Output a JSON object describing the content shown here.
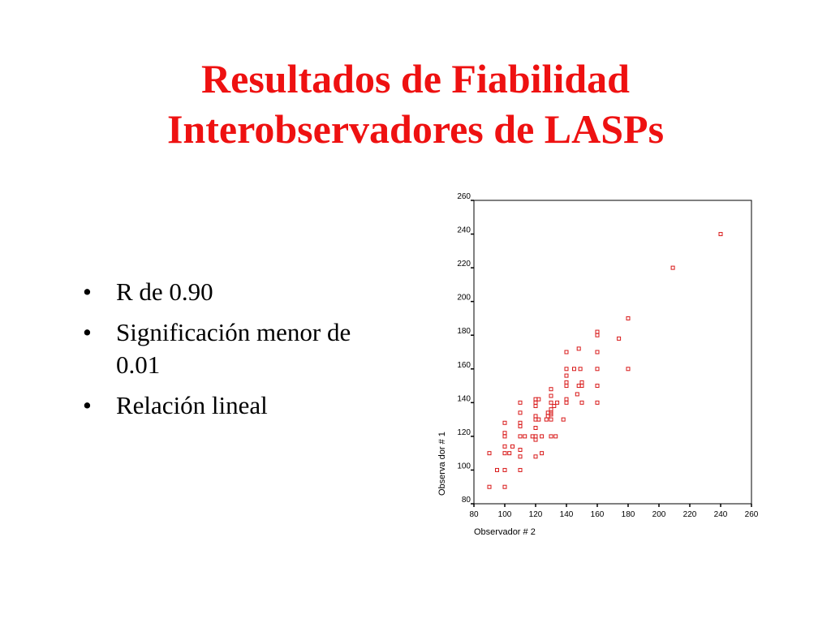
{
  "title": {
    "line1": "Resultados de Fiabilidad",
    "line2": "Interobservadores de LASPs"
  },
  "bullets": [
    "R de 0.90",
    "Significación menor de 0.01",
    "Relación lineal"
  ],
  "colors": {
    "title": "#ee1111",
    "marker": "#d81818",
    "text": "#000000"
  },
  "chart_data": {
    "type": "scatter",
    "xlabel": "Observador # 2",
    "ylabel": "Observa dor # 1",
    "xlim": [
      80,
      260
    ],
    "ylim": [
      80,
      260
    ],
    "xticks": [
      80,
      100,
      120,
      140,
      160,
      180,
      200,
      220,
      240,
      260
    ],
    "yticks": [
      80,
      100,
      120,
      140,
      160,
      180,
      200,
      220,
      240,
      260
    ],
    "grid": false,
    "marker": "hollow-square",
    "points": [
      [
        90,
        90
      ],
      [
        90,
        110
      ],
      [
        95,
        100
      ],
      [
        100,
        90
      ],
      [
        100,
        100
      ],
      [
        100,
        110
      ],
      [
        100,
        114
      ],
      [
        100,
        120
      ],
      [
        100,
        122
      ],
      [
        100,
        128
      ],
      [
        103,
        110
      ],
      [
        105,
        114
      ],
      [
        110,
        100
      ],
      [
        110,
        108
      ],
      [
        110,
        112
      ],
      [
        110,
        120
      ],
      [
        110,
        126
      ],
      [
        110,
        128
      ],
      [
        110,
        134
      ],
      [
        110,
        140
      ],
      [
        113,
        120
      ],
      [
        118,
        120
      ],
      [
        120,
        108
      ],
      [
        120,
        118
      ],
      [
        120,
        120
      ],
      [
        120,
        125
      ],
      [
        120,
        130
      ],
      [
        120,
        132
      ],
      [
        120,
        138
      ],
      [
        120,
        140
      ],
      [
        120,
        142
      ],
      [
        122,
        130
      ],
      [
        122,
        142
      ],
      [
        124,
        110
      ],
      [
        124,
        120
      ],
      [
        127,
        130
      ],
      [
        128,
        132
      ],
      [
        128,
        134
      ],
      [
        130,
        120
      ],
      [
        130,
        130
      ],
      [
        130,
        133
      ],
      [
        130,
        134
      ],
      [
        130,
        136
      ],
      [
        130,
        140
      ],
      [
        130,
        144
      ],
      [
        130,
        148
      ],
      [
        132,
        138
      ],
      [
        133,
        120
      ],
      [
        134,
        140
      ],
      [
        138,
        130
      ],
      [
        140,
        140
      ],
      [
        140,
        142
      ],
      [
        140,
        150
      ],
      [
        140,
        152
      ],
      [
        140,
        156
      ],
      [
        140,
        160
      ],
      [
        140,
        170
      ],
      [
        145,
        160
      ],
      [
        147,
        145
      ],
      [
        148,
        150
      ],
      [
        148,
        172
      ],
      [
        149,
        160
      ],
      [
        150,
        140
      ],
      [
        150,
        150
      ],
      [
        150,
        152
      ],
      [
        160,
        140
      ],
      [
        160,
        150
      ],
      [
        160,
        160
      ],
      [
        160,
        170
      ],
      [
        160,
        180
      ],
      [
        160,
        182
      ],
      [
        174,
        178
      ],
      [
        180,
        160
      ],
      [
        180,
        190
      ],
      [
        209,
        220
      ],
      [
        240,
        240
      ]
    ]
  }
}
